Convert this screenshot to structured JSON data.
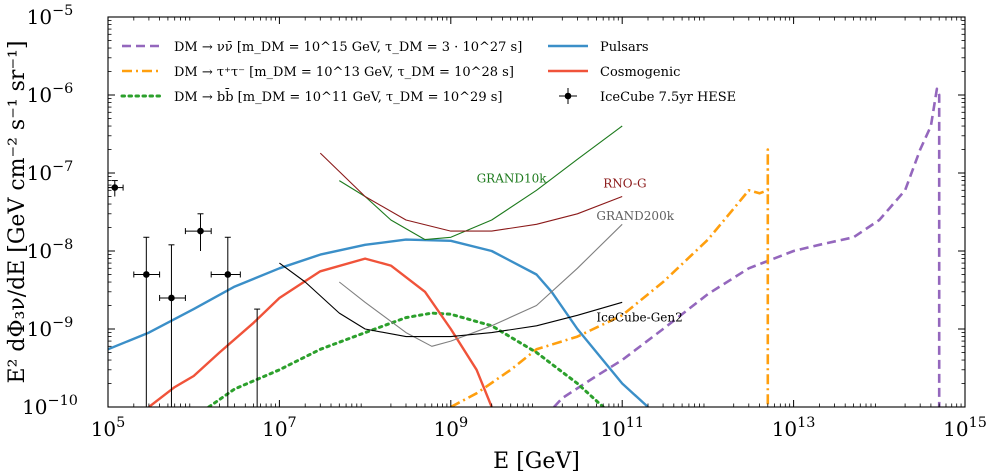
{
  "chart_data": {
    "type": "line",
    "title": "",
    "xlabel": "E [GeV]",
    "ylabel": "E² dΦ₃ν/dE [GeV cm⁻² s⁻¹ sr⁻¹]",
    "xscale": "log",
    "yscale": "log",
    "xlim": [
      100000,
      1000000000000000
    ],
    "ylim": [
      1e-10,
      1e-05
    ],
    "xticks": [
      {
        "value": 100000,
        "label": "10^5"
      },
      {
        "value": 10000000,
        "label": "10^7"
      },
      {
        "value": 1000000000,
        "label": "10^9"
      },
      {
        "value": 100000000000,
        "label": "10^11"
      },
      {
        "value": 10000000000000,
        "label": "10^13"
      },
      {
        "value": 1000000000000000,
        "label": "10^15"
      }
    ],
    "yticks": [
      {
        "value": 1e-10,
        "label": "10^−10"
      },
      {
        "value": 1e-09,
        "label": "10^−9"
      },
      {
        "value": 1e-08,
        "label": "10^−8"
      },
      {
        "value": 1e-07,
        "label": "10^−7"
      },
      {
        "value": 1e-06,
        "label": "10^−6"
      },
      {
        "value": 1e-05,
        "label": "10^−5"
      }
    ],
    "legend_position": "top",
    "legend": [
      {
        "label": "DM → νν̄ [m_DM = 10^15 GeV, τ_DM = 3 · 10^27 s]",
        "series": "dm_nunu"
      },
      {
        "label": "DM → τ⁺τ⁻ [m_DM = 10^13 GeV, τ_DM = 10^28 s]",
        "series": "dm_tautau"
      },
      {
        "label": "DM → bb̄ [m_DM = 10^11 GeV, τ_DM = 10^29 s]",
        "series": "dm_bb"
      },
      {
        "label": "Pulsars",
        "series": "pulsars"
      },
      {
        "label": "Cosmogenic",
        "series": "cosmogenic"
      },
      {
        "label": "IceCube 7.5yr HESE",
        "series": "icecube"
      }
    ],
    "series": [
      {
        "name": "DM → νν̄ [m_DM = 10^15 GeV, τ_DM = 3 · 10^27 s]",
        "key": "dm_nunu",
        "color": "#9467bd",
        "style": "dashed",
        "points": [
          [
            16000000000.0,
            1e-10
          ],
          [
            20000000000.0,
            1.3e-10
          ],
          [
            50000000000.0,
            2.5e-10
          ],
          [
            100000000000.0,
            4e-10
          ],
          [
            300000000000.0,
            1e-09
          ],
          [
            1000000000000.0,
            2.8e-09
          ],
          [
            3000000000000.0,
            6e-09
          ],
          [
            10000000000000.0,
            1e-08
          ],
          [
            20000000000000.0,
            1.2e-08
          ],
          [
            50000000000000.0,
            1.5e-08
          ],
          [
            100000000000000.0,
            2.5e-08
          ],
          [
            200000000000000.0,
            6e-08
          ],
          [
            300000000000000.0,
            2e-07
          ],
          [
            400000000000000.0,
            4e-07
          ],
          [
            470000000000000.0,
            1.2e-06
          ],
          [
            500000000000000.0,
            1e-06
          ],
          [
            500000000000000.0,
            1e-10
          ]
        ]
      },
      {
        "name": "DM → τ⁺τ⁻ [m_DM = 10^13 GeV, τ_DM = 10^28 s]",
        "key": "dm_tautau",
        "color": "#ff9f0e",
        "style": "dashdot",
        "points": [
          [
            1000000000.0,
            1e-10
          ],
          [
            2000000000.0,
            1.5e-10
          ],
          [
            5000000000.0,
            3e-10
          ],
          [
            10000000000.0,
            5.5e-10
          ],
          [
            30000000000.0,
            8e-10
          ],
          [
            100000000000.0,
            1.5e-09
          ],
          [
            300000000000.0,
            4e-09
          ],
          [
            1000000000000.0,
            1.4e-08
          ],
          [
            2000000000000.0,
            3.5e-08
          ],
          [
            3000000000000.0,
            6e-08
          ],
          [
            4000000000000.0,
            5.5e-08
          ],
          [
            5000000000000.0,
            6e-08
          ],
          [
            5000000000000.0,
            2e-07
          ],
          [
            5000000000000.0,
            1e-10
          ]
        ]
      },
      {
        "name": "DM → bb̄ [m_DM = 10^11 GeV, τ_DM = 10^29 s]",
        "key": "dm_bb",
        "color": "#2ca02c",
        "style": "dotted",
        "points": [
          [
            1500000.0,
            1e-10
          ],
          [
            3000000.0,
            1.7e-10
          ],
          [
            10000000.0,
            3e-10
          ],
          [
            30000000.0,
            5.5e-10
          ],
          [
            100000000.0,
            9e-10
          ],
          [
            300000000.0,
            1.4e-09
          ],
          [
            600000000.0,
            1.6e-09
          ],
          [
            1000000000.0,
            1.55e-09
          ],
          [
            3000000000.0,
            1.1e-09
          ],
          [
            10000000000.0,
            5e-10
          ],
          [
            30000000000.0,
            2e-10
          ],
          [
            60000000000.0,
            1e-10
          ]
        ]
      },
      {
        "name": "Pulsars",
        "key": "pulsars",
        "color": "#3b8fc8",
        "style": "solid",
        "points": [
          [
            100000.0,
            5.5e-10
          ],
          [
            300000.0,
            9e-10
          ],
          [
            1000000.0,
            1.8e-09
          ],
          [
            3000000.0,
            3.5e-09
          ],
          [
            10000000.0,
            6e-09
          ],
          [
            30000000.0,
            9e-09
          ],
          [
            100000000.0,
            1.2e-08
          ],
          [
            300000000.0,
            1.4e-08
          ],
          [
            1000000000.0,
            1.35e-08
          ],
          [
            3000000000.0,
            1e-08
          ],
          [
            10000000000.0,
            5e-09
          ],
          [
            15000000000.0,
            3e-09
          ],
          [
            30000000000.0,
            1e-09
          ],
          [
            100000000000.0,
            2e-10
          ],
          [
            200000000000.0,
            1e-10
          ]
        ]
      },
      {
        "name": "Cosmogenic",
        "key": "cosmogenic",
        "color": "#f0533a",
        "style": "solid",
        "points": [
          [
            300000.0,
            1e-10
          ],
          [
            600000.0,
            1.8e-10
          ],
          [
            1000000.0,
            2.5e-10
          ],
          [
            2000000.0,
            5e-10
          ],
          [
            5000000.0,
            1.2e-09
          ],
          [
            10000000.0,
            2.5e-09
          ],
          [
            30000000.0,
            5.5e-09
          ],
          [
            100000000.0,
            8e-09
          ],
          [
            200000000.0,
            6.5e-09
          ],
          [
            500000000.0,
            3e-09
          ],
          [
            1000000000.0,
            1e-09
          ],
          [
            2000000000.0,
            3e-10
          ],
          [
            3000000000.0,
            1e-10
          ]
        ]
      },
      {
        "name": "GRAND10k",
        "key": "grand10k",
        "color": "#1d7a1d",
        "style": "thin",
        "points": [
          [
            50000000.0,
            8e-08
          ],
          [
            100000000.0,
            5e-08
          ],
          [
            200000000.0,
            2.5e-08
          ],
          [
            500000000.0,
            1.4e-08
          ],
          [
            1000000000.0,
            1.5e-08
          ],
          [
            3000000000.0,
            2.5e-08
          ],
          [
            10000000000.0,
            6e-08
          ],
          [
            30000000000.0,
            1.5e-07
          ],
          [
            100000000000.0,
            4e-07
          ]
        ]
      },
      {
        "name": "RNO-G",
        "key": "rnog",
        "color": "#8b1a1a",
        "style": "thin",
        "points": [
          [
            30000000.0,
            1.8e-07
          ],
          [
            100000000.0,
            5e-08
          ],
          [
            300000000.0,
            2.5e-08
          ],
          [
            1000000000.0,
            1.8e-08
          ],
          [
            3000000000.0,
            1.8e-08
          ],
          [
            10000000000.0,
            2.2e-08
          ],
          [
            30000000000.0,
            3e-08
          ],
          [
            100000000000.0,
            5e-08
          ]
        ]
      },
      {
        "name": "GRAND200k",
        "key": "grand200k",
        "color": "#808080",
        "style": "thin",
        "points": [
          [
            50000000.0,
            4e-09
          ],
          [
            100000000.0,
            2.2e-09
          ],
          [
            300000000.0,
            9e-10
          ],
          [
            600000000.0,
            6e-10
          ],
          [
            1000000000.0,
            7e-10
          ],
          [
            3000000000.0,
            1.1e-09
          ],
          [
            10000000000.0,
            2e-09
          ],
          [
            30000000000.0,
            6e-09
          ],
          [
            100000000000.0,
            2.2e-08
          ]
        ]
      },
      {
        "name": "IceCube-Gen2",
        "key": "gen2",
        "color": "#000000",
        "style": "thin",
        "points": [
          [
            10000000.0,
            7e-09
          ],
          [
            20000000.0,
            4e-09
          ],
          [
            50000000.0,
            1.6e-09
          ],
          [
            100000000.0,
            1e-09
          ],
          [
            300000000.0,
            8e-10
          ],
          [
            1000000000.0,
            8e-10
          ],
          [
            3000000000.0,
            9e-10
          ],
          [
            10000000000.0,
            1.1e-09
          ],
          [
            30000000000.0,
            1.5e-09
          ],
          [
            100000000000.0,
            2.2e-09
          ]
        ]
      }
    ],
    "annotations": [
      {
        "text": "GRAND10k",
        "x": 2000000000.0,
        "y": 7.5e-08,
        "color": "#1d7a1d"
      },
      {
        "text": "RNO-G",
        "x": 60000000000.0,
        "y": 6.5e-08,
        "color": "#8b1a1a"
      },
      {
        "text": "GRAND200k",
        "x": 50000000000.0,
        "y": 2.5e-08,
        "color": "#606060"
      },
      {
        "text": "IceCube-Gen2",
        "x": 50000000000.0,
        "y": 1.25e-09,
        "color": "#000000"
      }
    ],
    "icecube_points": [
      {
        "x": 120000.0,
        "y": 6.5e-08,
        "xlo": 100000.0,
        "xhi": 150000.0,
        "ylo": 5e-08,
        "yhi": 8e-08
      },
      {
        "x": 280000.0,
        "y": 5e-09,
        "xlo": 200000.0,
        "xhi": 400000.0,
        "ylo": 1e-10,
        "yhi": 1.5e-08
      },
      {
        "x": 550000.0,
        "y": 2.5e-09,
        "xlo": 400000.0,
        "xhi": 800000.0,
        "ylo": 1e-10,
        "yhi": 1.2e-08
      },
      {
        "x": 1200000.0,
        "y": 1.8e-08,
        "xlo": 800000.0,
        "xhi": 1600000.0,
        "ylo": 1e-08,
        "yhi": 3e-08
      },
      {
        "x": 2500000.0,
        "y": 5e-09,
        "xlo": 1600000.0,
        "xhi": 3500000.0,
        "ylo": 1e-10,
        "yhi": 1.5e-08
      },
      {
        "x": 5500000.0,
        "y": 1.8e-09,
        "xlo": 5500000.0,
        "xhi": 5500000.0,
        "ylo": 1e-10,
        "yhi": 1.8e-09
      }
    ]
  }
}
